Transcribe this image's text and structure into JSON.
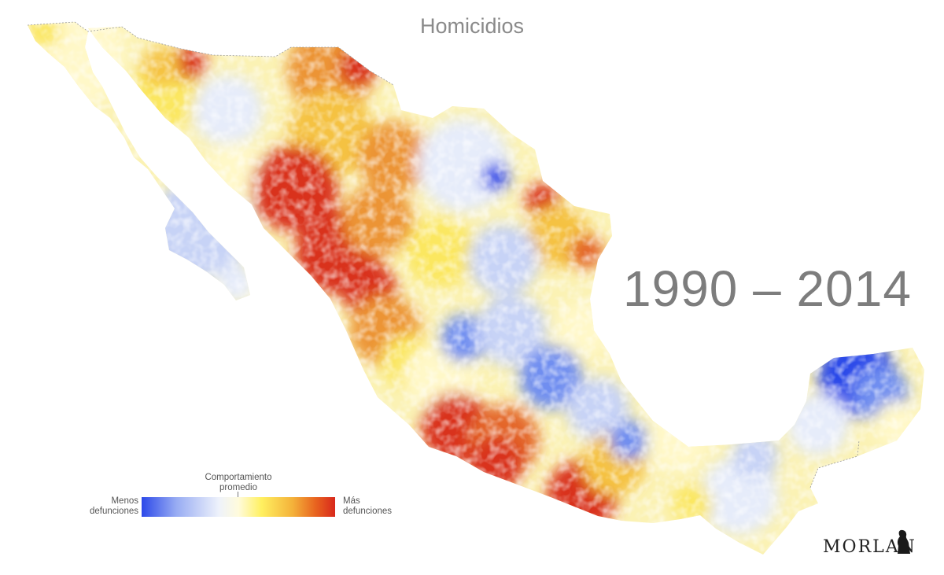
{
  "title": "Homicidios",
  "years": "1990 – 2014",
  "legend": {
    "left_label_1": "Menos",
    "left_label_2": "defunciones",
    "mid_label_1": "Comportamiento",
    "mid_label_2": "promedio",
    "right_label_1": "Más",
    "right_label_2": "defunciones",
    "gradient_colors": [
      "#2c49e9",
      "#98acf3",
      "#eef2fb",
      "#fffbdc",
      "#fff060",
      "#f4b23a",
      "#e8631f",
      "#d8281c"
    ]
  },
  "logo": "MORLAN",
  "colors": {
    "deep_blue": "#2c49e9",
    "blue": "#6f8ef0",
    "light_blue": "#c7d3f6",
    "pale_blue": "#e6ecfa",
    "near_white": "#f6f6ee",
    "cream": "#fff8c8",
    "yellow": "#fbe760",
    "gold": "#f5c242",
    "orange": "#ec9436",
    "dark_orange": "#e4682a",
    "red": "#d9311f",
    "dark_red": "#c01f1a"
  }
}
